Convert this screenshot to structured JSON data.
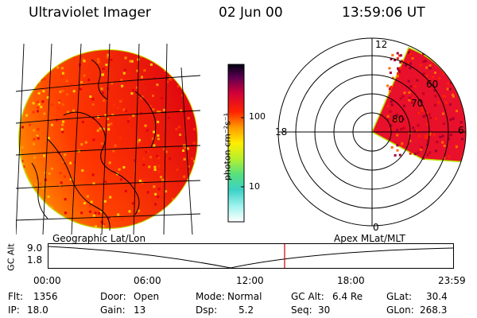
{
  "header": {
    "title": "Ultraviolet Imager",
    "date": "02 Jun 00",
    "time": "13:59:06 UT"
  },
  "left_image": {
    "projection": "Geographic Lat/Lon"
  },
  "colorbar": {
    "unit_label": "photon cm⁻²s⁻¹",
    "ticks": [
      "100",
      "10"
    ],
    "scale": "log",
    "colors": [
      "#ffffff",
      "#9ff3ee",
      "#3cd2c8",
      "#56e07f",
      "#b6f02e",
      "#ffee00",
      "#ff9900",
      "#ff2200",
      "#d0003a",
      "#5a0050",
      "#000010"
    ]
  },
  "polar_plot": {
    "projection": "Apex MLat/MLT",
    "mlt_labels": {
      "top": "12",
      "left": "18",
      "right": "6",
      "bottom": "0"
    },
    "mlat_labels": [
      "60",
      "70",
      "80"
    ]
  },
  "timeline": {
    "y_label": "GC Alt",
    "y_ticks": [
      "9.0",
      "1.8"
    ],
    "x_ticks": [
      "00:00",
      "06:00",
      "12:00",
      "18:00",
      "23:59"
    ],
    "current_time_marker": "13:59"
  },
  "info": {
    "flt_label": "Flt:",
    "flt_value": "1356",
    "ip_label": "IP:",
    "ip_value": "18.0",
    "door_label": "Door:",
    "door_value": "Open",
    "gain_label": "Gain:",
    "gain_value": "13",
    "mode_label": "Mode:",
    "mode_value": "Normal",
    "dsp_label": "Dsp:",
    "dsp_value": "5.2",
    "gcalt_label": "GC Alt:",
    "gcalt_value": "6.4 Re",
    "seq_label": "Seq:",
    "seq_value": "30",
    "glat_label": "GLat:",
    "glat_value": "30.4",
    "glon_label": "GLon:",
    "glon_value": "268.3"
  }
}
